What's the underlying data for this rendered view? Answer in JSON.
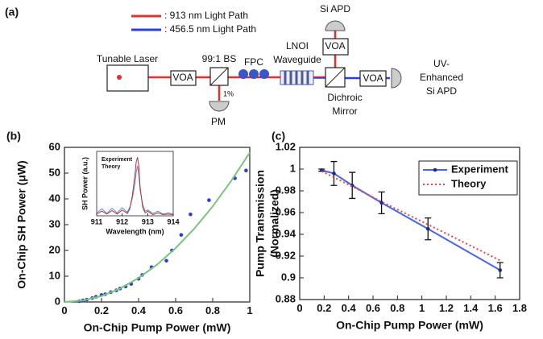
{
  "diagram": {
    "label": "(a)",
    "legend": [
      ": 913 nm Light Path",
      ": 456.5 nm Light Path"
    ],
    "laser": "Tunable Laser",
    "voa_1": "VOA",
    "splitter": "99:1 BS",
    "tap": "1%",
    "pm": "PM",
    "fpc": "FPC",
    "waveguide": [
      "LNOI",
      "Waveguide"
    ],
    "dichroic": [
      "Dichroic",
      "Mirror"
    ],
    "voa_2": "VOA",
    "voa_3": "VOA",
    "si_apd": "Si APD",
    "uv_apd": [
      "UV-",
      "Enhanced",
      "Si APD"
    ]
  },
  "chart_data": [
    {
      "type": "scatter",
      "title": "(b)",
      "xlabel": "On-Chip Pump Power (mW)",
      "ylabel": "On-Chip SH Power (μW)",
      "xlim": [
        0,
        1
      ],
      "xticks": [
        0,
        0.2,
        0.4,
        0.6,
        0.8,
        1
      ],
      "ylim": [
        0,
        60
      ],
      "yticks": [
        0,
        10,
        20,
        30,
        40,
        50,
        60
      ],
      "series": [
        {
          "color": "#2a3fd0",
          "marker": true,
          "line_style": "none",
          "x": [
            0.08,
            0.1,
            0.12,
            0.15,
            0.17,
            0.2,
            0.22,
            0.25,
            0.28,
            0.3,
            0.33,
            0.36,
            0.4,
            0.42,
            0.47,
            0.55,
            0.58,
            0.63,
            0.68,
            0.78,
            0.92,
            0.98
          ],
          "values": [
            0.3,
            0.6,
            0.9,
            1.5,
            2,
            2.7,
            3,
            3.8,
            4.5,
            5.2,
            6,
            7,
            9,
            10.5,
            13.5,
            16,
            20,
            26,
            34,
            39.5,
            48,
            51
          ]
        },
        {
          "color": "#7cc47c",
          "marker": false,
          "line_style": "solid",
          "x": [
            0,
            0.1,
            0.2,
            0.3,
            0.4,
            0.5,
            0.6,
            0.7,
            0.8,
            0.9,
            1
          ],
          "values": [
            0,
            0.58,
            2.3,
            5.2,
            9.3,
            14.5,
            20.9,
            28.4,
            37.1,
            47,
            58
          ]
        }
      ]
    },
    {
      "type": "line",
      "xlabel": "Wavelength (nm)",
      "ylabel": "SH Power (a.u.)",
      "xlim": [
        911,
        914
      ],
      "xticks": [
        911,
        912,
        913,
        914
      ],
      "ylim": [
        0,
        1.1
      ],
      "series": [
        {
          "name": "Experiment",
          "color": "#5b8fd6",
          "marker": false,
          "line_style": "solid",
          "x": [
            911,
            911.2,
            911.4,
            911.6,
            911.8,
            912,
            912.2,
            912.3,
            912.4,
            912.5,
            912.55,
            912.6,
            912.65,
            912.7,
            912.8,
            912.9,
            913,
            913.2,
            913.4,
            913.6,
            913.8,
            914
          ],
          "values": [
            0.05,
            0.12,
            0.04,
            0.13,
            0.05,
            0.14,
            0.06,
            0.15,
            0.3,
            0.55,
            0.75,
            0.85,
            0.7,
            0.45,
            0.2,
            0.08,
            0.1,
            0.04,
            0.08,
            0.03,
            0.05,
            0.03
          ]
        },
        {
          "name": "Theory",
          "color": "#c0303a",
          "marker": false,
          "line_style": "solid",
          "x": [
            911,
            911.2,
            911.4,
            911.6,
            911.8,
            912,
            912.2,
            912.3,
            912.4,
            912.5,
            912.55,
            912.6,
            912.65,
            912.7,
            912.8,
            912.9,
            913,
            913.2,
            913.4,
            913.6,
            913.8,
            914
          ],
          "values": [
            0.03,
            0.08,
            0.03,
            0.09,
            0.03,
            0.1,
            0.04,
            0.12,
            0.35,
            0.7,
            0.92,
            1,
            0.85,
            0.5,
            0.15,
            0.05,
            0.08,
            0.02,
            0.05,
            0.02,
            0.03,
            0.02
          ]
        }
      ]
    },
    {
      "type": "line",
      "title": "(c)",
      "xlabel": "On-Chip Pump Power (mW)",
      "ylabel": [
        "Pump Transmission",
        "(Normalized)"
      ],
      "xlim": [
        0,
        1.8
      ],
      "xticks": [
        0,
        0.2,
        0.4,
        0.6,
        0.8,
        1,
        1.2,
        1.4,
        1.6,
        1.8
      ],
      "ylim": [
        0.88,
        1.02
      ],
      "yticks": [
        0.88,
        0.9,
        0.92,
        0.94,
        0.96,
        0.98,
        1,
        1.02
      ],
      "series": [
        {
          "name": "Experiment",
          "color": "#4a66e8",
          "marker": true,
          "line_style": "solid",
          "x": [
            0.18,
            0.28,
            0.43,
            0.67,
            1.05,
            1.64
          ],
          "values": [
            0.999,
            0.996,
            0.985,
            0.969,
            0.945,
            0.907
          ],
          "errors": [
            0.001,
            0.011,
            0.012,
            0.01,
            0.01,
            0.007
          ]
        },
        {
          "name": "Theory",
          "color": "#ee4444",
          "marker": false,
          "line_style": "dotted",
          "x": [
            0.18,
            0.43,
            0.67,
            1.05,
            1.64
          ],
          "values": [
            0.998,
            0.984,
            0.97,
            0.949,
            0.916
          ]
        }
      ]
    }
  ]
}
